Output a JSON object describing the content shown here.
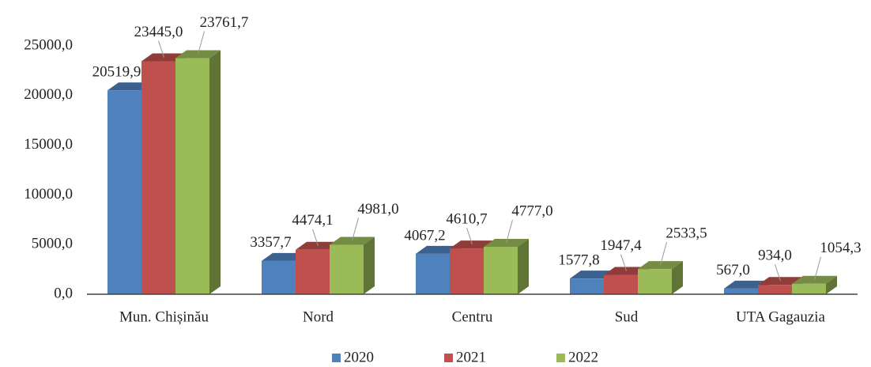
{
  "chart_data": {
    "type": "bar3d",
    "categories": [
      "Mun. Chișinău",
      "Nord",
      "Centru",
      "Sud",
      "UTA Gagauzia"
    ],
    "series": [
      {
        "name": "2020",
        "color": "#4f81bd",
        "values": [
          20519.9,
          3357.7,
          4067.2,
          1577.8,
          567.0
        ],
        "value_labels": [
          "20519,9",
          "3357,7",
          "4067,2",
          "1577,8",
          "567,0"
        ]
      },
      {
        "name": "2021",
        "color": "#c0504d",
        "values": [
          23445.0,
          4474.1,
          4610.7,
          1947.4,
          934.0
        ],
        "value_labels": [
          "23445,0",
          "4474,1",
          "4610,7",
          "1947,4",
          "934,0"
        ]
      },
      {
        "name": "2022",
        "color": "#9bbb59",
        "values": [
          23761.7,
          4981.0,
          4777.0,
          2533.5,
          1054.3
        ],
        "value_labels": [
          "23761,7",
          "4981,0",
          "4777,0",
          "2533,5",
          "1054,3"
        ]
      }
    ],
    "ylim": [
      0,
      25000
    ],
    "yticks": [
      {
        "value": 0,
        "label": "0,0"
      },
      {
        "value": 5000,
        "label": "5000,0"
      },
      {
        "value": 10000,
        "label": "10000,0"
      },
      {
        "value": 15000,
        "label": "15000,0"
      },
      {
        "value": 20000,
        "label": "20000,0"
      },
      {
        "value": 25000,
        "label": "25000,0"
      }
    ],
    "legend": "bottom"
  }
}
